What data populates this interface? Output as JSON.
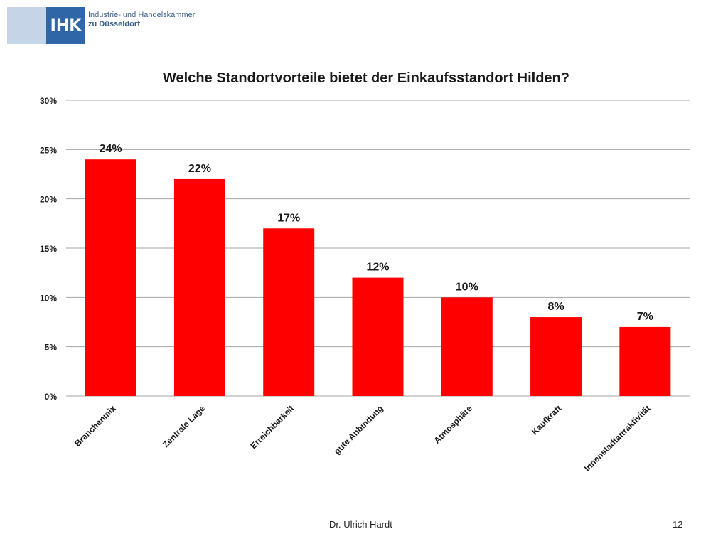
{
  "logo": {
    "mark": "IHK",
    "line1": "Industrie- und Handelskammer",
    "line2": "zu Düsseldorf"
  },
  "footer": {
    "author": "Dr. Ulrich Hardt",
    "page": "12"
  },
  "chart_data": {
    "type": "bar",
    "title": "Welche Standortvorteile bietet der Einkaufsstandort Hilden?",
    "xlabel": "",
    "ylabel": "",
    "categories": [
      "Branchenmix",
      "Zentrale Lage",
      "Erreichbarkeit",
      "gute Anbindung",
      "Atmosphäre",
      "Kaufkraft",
      "Innenstadtattraktivität"
    ],
    "values": [
      24,
      22,
      17,
      12,
      10,
      8,
      7
    ],
    "value_labels": [
      "24%",
      "22%",
      "17%",
      "12%",
      "10%",
      "8%",
      "7%"
    ],
    "y_ticks": [
      0,
      5,
      10,
      15,
      20,
      25,
      30
    ],
    "y_tick_labels": [
      "0%",
      "5%",
      "10%",
      "15%",
      "20%",
      "25%",
      "30%"
    ],
    "ylim": [
      0,
      30
    ],
    "grid": true,
    "legend": "none",
    "bar_color": "#ff0000",
    "grid_color": "#a6a6a6"
  }
}
